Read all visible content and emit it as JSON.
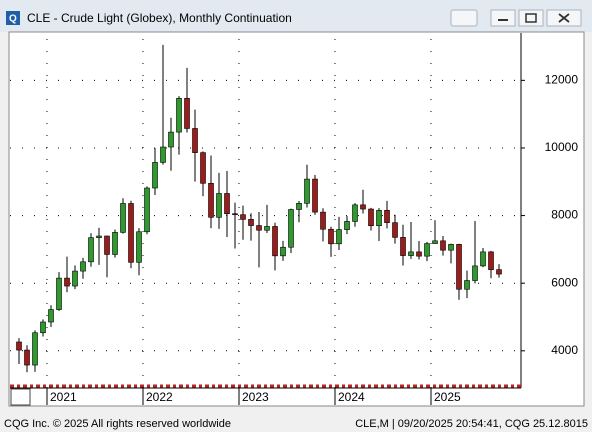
{
  "chart_data": {
    "type": "candlestick",
    "title": "CLE - Crude Light (Globex), Monthly Continuation",
    "categories": [
      null,
      null,
      null,
      null,
      "2021",
      null,
      null,
      null,
      null,
      null,
      null,
      null,
      null,
      null,
      null,
      null,
      "2022",
      null,
      null,
      null,
      null,
      null,
      null,
      null,
      null,
      null,
      null,
      null,
      "2023",
      null,
      null,
      null,
      null,
      null,
      null,
      null,
      null,
      null,
      null,
      null,
      "2024",
      null,
      null,
      null,
      null,
      null,
      null,
      null,
      null,
      null,
      null,
      null,
      "2025",
      null,
      null,
      null,
      null,
      null,
      null,
      null,
      null
    ],
    "open": [
      4261,
      4022,
      3579,
      4534,
      4852,
      5220,
      6150,
      5916,
      6358,
      6632,
      7347,
      7395,
      6850,
      7503,
      8357,
      6618,
      7521,
      8815,
      9572,
      10028,
      10469,
      11467,
      10576,
      9862,
      8955,
      7949,
      8653,
      8055,
      8026,
      7887,
      7705,
      7567,
      7678,
      6809,
      7064,
      8180,
      8363,
      9079,
      8102,
      7596,
      7165,
      7585,
      7826,
      8317,
      8193,
      7699,
      8154,
      7791,
      7355,
      6817,
      6926,
      6800,
      7172,
      7253,
      6976,
      7148,
      5821,
      6079,
      6511,
      6926,
      6401
    ],
    "high": [
      4376,
      4163,
      4605,
      4930,
      5349,
      6328,
      6787,
      6524,
      6748,
      7476,
      7640,
      7406,
      7587,
      8513,
      8438,
      7628,
      8864,
      10000,
      13050,
      10893,
      11533,
      12368,
      11133,
      9900,
      9775,
      9264,
      9317,
      8384,
      8295,
      8068,
      8104,
      8316,
      7788,
      7250,
      8204,
      8430,
      9503,
      9200,
      8216,
      7669,
      7961,
      7984,
      8367,
      8763,
      8227,
      8221,
      8436,
      8023,
      7728,
      7810,
      7248,
      7223,
      7860,
      7395,
      7169,
      7168,
      6370,
      7840,
      7040,
      6954,
      6565
    ],
    "low": [
      3611,
      3364,
      3376,
      4423,
      4705,
      5183,
      5732,
      5826,
      6130,
      6485,
      6541,
      6174,
      6758,
      7466,
      6443,
      6234,
      7449,
      8607,
      9506,
      9325,
      9803,
      10456,
      9003,
      8573,
      7625,
      7608,
      7367,
      7025,
      7284,
      7258,
      6466,
      7483,
      6379,
      6661,
      6893,
      7804,
      8238,
      8020,
      7235,
      6779,
      6982,
      7453,
      7668,
      8060,
      7557,
      7248,
      7620,
      7172,
      6522,
      6720,
      6702,
      6652,
      7167,
      6816,
      6585,
      5512,
      5557,
      5994,
      6471,
      6145,
      6163
    ],
    "close": [
      4022,
      3579,
      4534,
      4852,
      5220,
      6150,
      5916,
      6358,
      6632,
      7347,
      7395,
      6850,
      7503,
      8357,
      6618,
      7521,
      8815,
      9572,
      10028,
      10469,
      11467,
      10576,
      9862,
      8955,
      7949,
      8653,
      8055,
      8026,
      7887,
      7705,
      7567,
      7678,
      6809,
      7064,
      8180,
      8363,
      9079,
      8102,
      7596,
      7165,
      7585,
      7826,
      8317,
      8193,
      7699,
      8154,
      7791,
      7355,
      6817,
      6926,
      6800,
      7172,
      7253,
      6976,
      7148,
      5821,
      6079,
      6511,
      6926,
      6401,
      6270
    ],
    "up_color": "#2e9a2e",
    "down_color": "#9c1c1c",
    "ylim": [
      2900,
      13400
    ],
    "yticks": [
      4000,
      6000,
      8000,
      10000,
      12000
    ],
    "grid": true
  },
  "status_bar": {
    "left": "CQG Inc. © 2025 All rights reserved worldwide",
    "right": "CLE,M | 09/20/2025 20:54:41, CQG 25.12.8015"
  }
}
